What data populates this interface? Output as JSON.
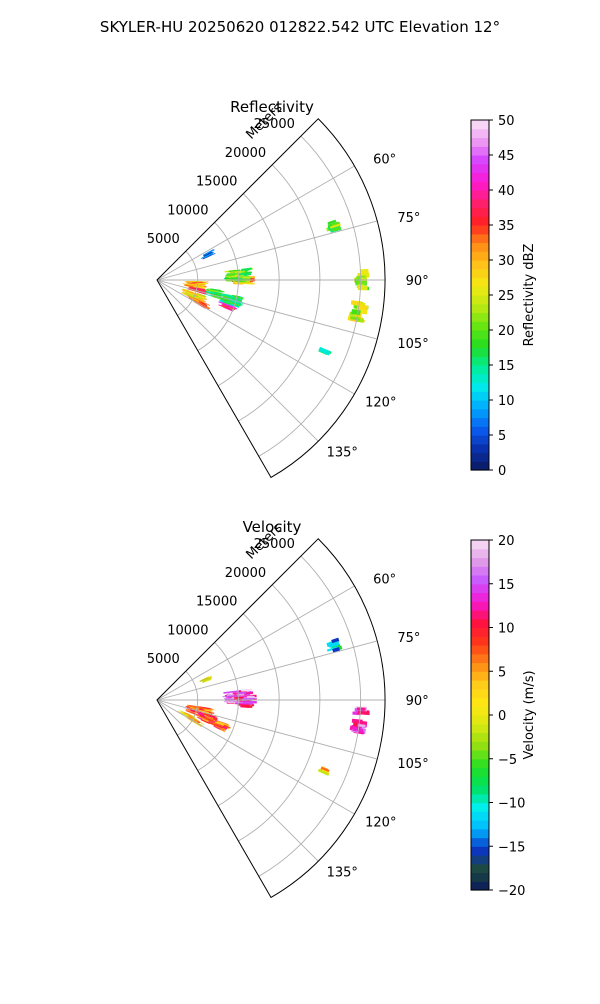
{
  "figure_title": "SKYLER-HU  20250620  012822.542 UTC Elevation 12°",
  "range_unit_label": "Meters",
  "range_ticks": [
    "5000",
    "10000",
    "15000",
    "20000",
    "25000"
  ],
  "azimuth_ticks": [
    "60°",
    "75°",
    "90°",
    "105°",
    "120°",
    "135°"
  ],
  "colors": {
    "grid": "#b0b0b0",
    "frame": "#000000"
  },
  "chart_data": [
    {
      "type": "heatmap",
      "title": "Reflectivity",
      "projection": "polar sector",
      "azimuth_range_deg": [
        45,
        150
      ],
      "range_lim_m": [
        0,
        28000
      ],
      "range_grid_m": [
        5000,
        10000,
        15000,
        20000,
        25000
      ],
      "azimuth_grid_deg": [
        60,
        75,
        90,
        105,
        120,
        135
      ],
      "colorbar": {
        "label": "Reflectivity dBZ",
        "lim": [
          0,
          50
        ],
        "ticks": [
          "0",
          "5",
          "10",
          "15",
          "20",
          "25",
          "30",
          "35",
          "40",
          "45",
          "50"
        ],
        "stops": [
          "#0b1a5e",
          "#0a2ea8",
          "#0a5cf0",
          "#00a8ff",
          "#00e8ee",
          "#00ee9a",
          "#22dd22",
          "#66e612",
          "#bfe814",
          "#f3e813",
          "#ffc21a",
          "#ff8a16",
          "#ff2020",
          "#ff1f6e",
          "#ff19d2",
          "#d43fff",
          "#ee9cf2",
          "#fae4f8"
        ]
      },
      "echo_areas": [
        {
          "az": 90,
          "r": 10500,
          "drz": 2000,
          "daz": 5,
          "value": 32
        },
        {
          "az": 87,
          "r": 10000,
          "drz": 2400,
          "daz": 8,
          "value": 20
        },
        {
          "az": 97,
          "r": 4800,
          "drz": 1800,
          "daz": 10,
          "value": 30
        },
        {
          "az": 104,
          "r": 5200,
          "drz": 1400,
          "daz": 5,
          "value": 36
        },
        {
          "az": 113,
          "r": 5000,
          "drz": 2200,
          "daz": 9,
          "value": 27
        },
        {
          "az": 118,
          "r": 5800,
          "drz": 2000,
          "daz": 5,
          "value": 33
        },
        {
          "az": 103,
          "r": 7300,
          "drz": 1200,
          "daz": 7,
          "value": 18
        },
        {
          "az": 110,
          "r": 9200,
          "drz": 1100,
          "daz": 4,
          "value": 38
        },
        {
          "az": 105,
          "r": 9500,
          "drz": 1600,
          "daz": 7,
          "value": 15
        },
        {
          "az": 64,
          "r": 7000,
          "drz": 600,
          "daz": 5,
          "value": 5
        },
        {
          "az": 73,
          "r": 22700,
          "drz": 700,
          "daz": 3,
          "value": 20
        },
        {
          "az": 90,
          "r": 25200,
          "drz": 600,
          "daz": 5,
          "value": 22
        },
        {
          "az": 99,
          "r": 25000,
          "drz": 1000,
          "daz": 5,
          "value": 24
        },
        {
          "az": 113,
          "r": 22300,
          "drz": 300,
          "daz": 1,
          "value": 15
        }
      ]
    },
    {
      "type": "heatmap",
      "title": "Velocity",
      "projection": "polar sector",
      "azimuth_range_deg": [
        45,
        150
      ],
      "range_lim_m": [
        0,
        28000
      ],
      "range_grid_m": [
        5000,
        10000,
        15000,
        20000,
        25000
      ],
      "azimuth_grid_deg": [
        60,
        75,
        90,
        105,
        120,
        135
      ],
      "colorbar": {
        "label": "Velocity (m/s)",
        "lim": [
          -20,
          20
        ],
        "ticks": [
          "−20",
          "−15",
          "−10",
          "−5",
          "0",
          "5",
          "10",
          "15",
          "20"
        ],
        "stops": [
          "#0b1a5e",
          "#1d4a3a",
          "#0a34c8",
          "#00b8ff",
          "#00f0f0",
          "#00e060",
          "#22e022",
          "#8fe012",
          "#d7e812",
          "#ffe813",
          "#ffcc1a",
          "#ff8a16",
          "#ff3818",
          "#ff1040",
          "#f618d0",
          "#c855ff",
          "#e29ce9",
          "#f7e0f4"
        ]
      },
      "echo_areas": [
        {
          "az": 90,
          "r": 10600,
          "drz": 2200,
          "daz": 6,
          "value": 14
        },
        {
          "az": 88,
          "r": 10000,
          "drz": 2600,
          "daz": 9,
          "value": 15
        },
        {
          "az": 93,
          "r": 11000,
          "drz": 1000,
          "daz": 3,
          "value": 10
        },
        {
          "az": 105,
          "r": 5400,
          "drz": 2400,
          "daz": 12,
          "value": 7
        },
        {
          "az": 110,
          "r": 6500,
          "drz": 1800,
          "daz": 8,
          "value": 9
        },
        {
          "az": 116,
          "r": 4200,
          "drz": 1400,
          "daz": 5,
          "value": 2
        },
        {
          "az": 119,
          "r": 5200,
          "drz": 1300,
          "daz": 4,
          "value": 4
        },
        {
          "az": 112,
          "r": 8500,
          "drz": 1200,
          "daz": 6,
          "value": 8
        },
        {
          "az": 68,
          "r": 6500,
          "drz": 500,
          "daz": 4,
          "value": 1
        },
        {
          "az": 73,
          "r": 22800,
          "drz": 700,
          "daz": 3,
          "value": -11
        },
        {
          "az": 96,
          "r": 25000,
          "drz": 900,
          "daz": 7,
          "value": 15
        },
        {
          "az": 113,
          "r": 22300,
          "drz": 300,
          "daz": 1,
          "value": 2
        }
      ]
    }
  ]
}
